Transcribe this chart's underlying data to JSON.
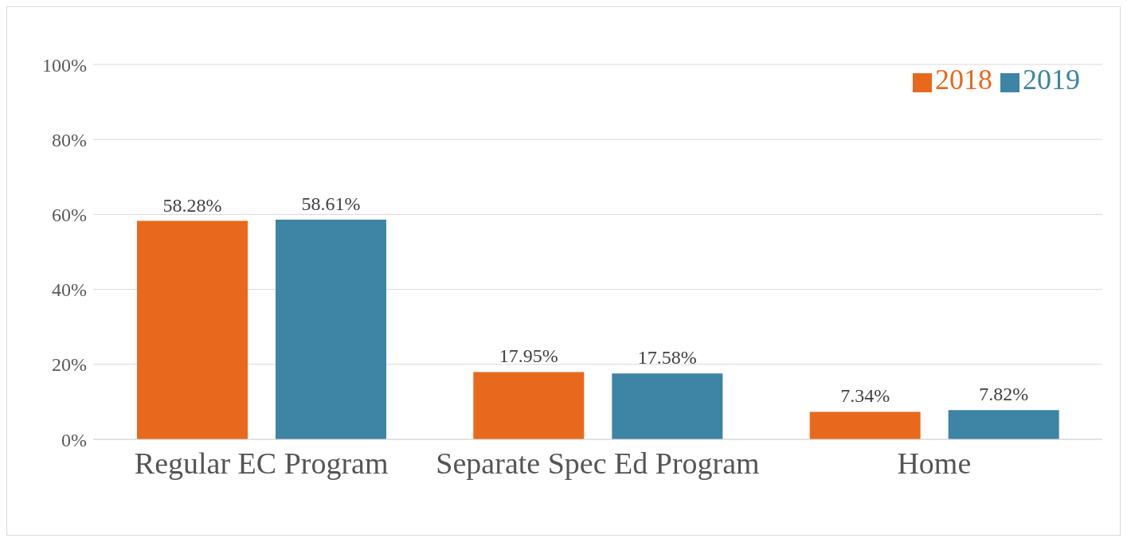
{
  "chart_data": {
    "type": "bar",
    "categories": [
      "Regular EC Program",
      "Separate Spec Ed Program",
      "Home"
    ],
    "series": [
      {
        "name": "2018",
        "color": "#e8691e",
        "values": [
          58.28,
          17.95,
          7.34
        ],
        "value_labels": [
          "58.28%",
          "17.95%",
          "7.34%"
        ]
      },
      {
        "name": "2019",
        "color": "#3e84a4",
        "values": [
          58.61,
          17.58,
          7.82
        ],
        "value_labels": [
          "58.61%",
          "17.58%",
          "7.82%"
        ]
      }
    ],
    "ylim": [
      0,
      100
    ],
    "yticks": [
      {
        "value": 0,
        "label": "0%"
      },
      {
        "value": 20,
        "label": "20%"
      },
      {
        "value": 40,
        "label": "40%"
      },
      {
        "value": 60,
        "label": "60%"
      },
      {
        "value": 80,
        "label": "80%"
      },
      {
        "value": 100,
        "label": "100%"
      }
    ],
    "grid": "y",
    "legend": "top right"
  }
}
